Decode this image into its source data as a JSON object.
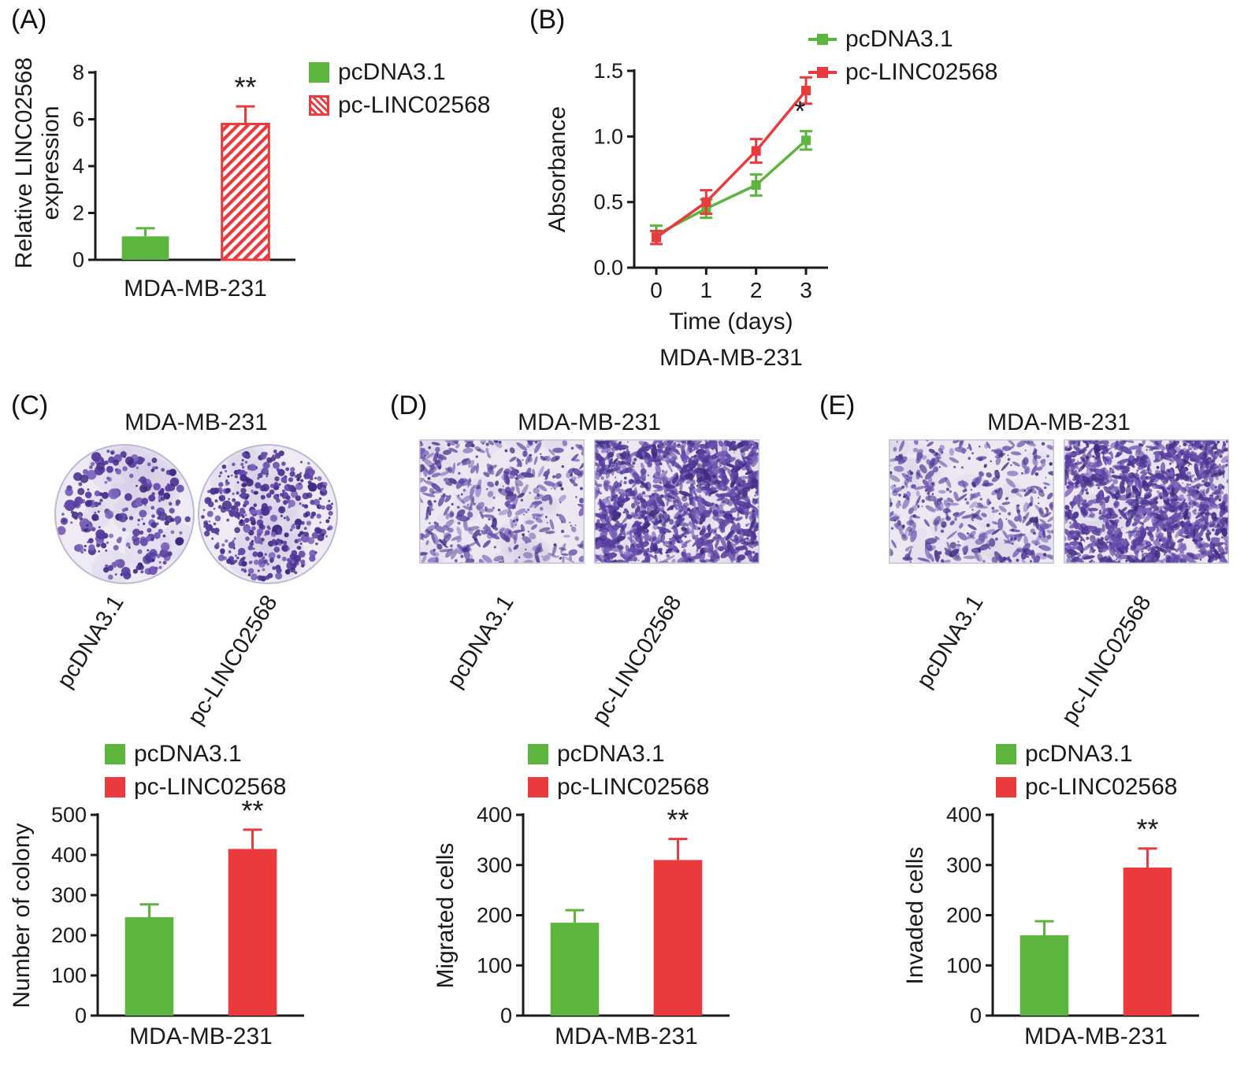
{
  "colors": {
    "green": "#5cb53c",
    "red": "#ea3a3e",
    "axis": "#1a1a1a",
    "stain": "#5a3f9f",
    "stain_bg": "#ebe8f2"
  },
  "panels": {
    "A": {
      "tag": "(A)"
    },
    "B": {
      "tag": "(B)"
    },
    "C": {
      "tag": "(C)",
      "title": "MDA-MB-231",
      "images": [
        {
          "label": "pcDNA3.1",
          "density": "low"
        },
        {
          "label": "pc-LINC02568",
          "density": "high"
        }
      ]
    },
    "D": {
      "tag": "(D)",
      "title": "MDA-MB-231",
      "images": [
        {
          "label": "pcDNA3.1",
          "density": "low"
        },
        {
          "label": "pc-LINC02568",
          "density": "high"
        }
      ]
    },
    "E": {
      "tag": "(E)",
      "title": "MDA-MB-231",
      "images": [
        {
          "label": "pcDNA3.1",
          "density": "low"
        },
        {
          "label": "pc-LINC02568",
          "density": "high"
        }
      ]
    }
  },
  "chart_data": [
    {
      "id": "A",
      "type": "bar",
      "ylabel": "Relative LINC02568 expression",
      "xlabel": "MDA-MB-231",
      "ylim": [
        0,
        8
      ],
      "yticks": [
        "0",
        "2",
        "4",
        "6",
        "8"
      ],
      "categories": [
        "pcDNA3.1",
        "pc-LINC02568"
      ],
      "values": [
        1.0,
        5.8
      ],
      "errors": [
        0.35,
        0.75
      ],
      "bar_styles": [
        "solid-green",
        "hatched-red"
      ],
      "annotations": [
        "",
        "**"
      ],
      "legend": [
        "pcDNA3.1",
        "pc-LINC02568"
      ]
    },
    {
      "id": "B",
      "type": "line",
      "ylabel": "Absorbance",
      "xlabel": "Time (days)",
      "subtitle": "MDA-MB-231",
      "ylim": [
        0,
        1.5
      ],
      "yticks": [
        "0.0",
        "0.5",
        "1.0",
        "1.5"
      ],
      "x": [
        0,
        1,
        2,
        3
      ],
      "xticks": [
        "0",
        "1",
        "2",
        "3"
      ],
      "series": [
        {
          "name": "pcDNA3.1",
          "color": "green",
          "values": [
            0.25,
            0.45,
            0.63,
            0.97
          ],
          "errors": [
            0.07,
            0.07,
            0.08,
            0.07
          ]
        },
        {
          "name": "pc-LINC02568",
          "color": "red",
          "values": [
            0.23,
            0.5,
            0.89,
            1.35
          ],
          "errors": [
            0.05,
            0.09,
            0.09,
            0.1
          ]
        }
      ],
      "annotations": [
        {
          "x": 2.88,
          "y": 1.12,
          "text": "*"
        }
      ],
      "legend_position": "top-right"
    },
    {
      "id": "C",
      "type": "bar",
      "ylabel": "Number of colony",
      "xlabel": "MDA-MB-231",
      "ylim": [
        0,
        500
      ],
      "yticks": [
        "0",
        "100",
        "200",
        "300",
        "400",
        "500"
      ],
      "categories": [
        "pcDNA3.1",
        "pc-LINC02568"
      ],
      "values": [
        245,
        415
      ],
      "errors": [
        32,
        48
      ],
      "bar_styles": [
        "solid-green",
        "solid-red"
      ],
      "annotations": [
        "",
        "**"
      ],
      "legend": [
        "pcDNA3.1",
        "pc-LINC02568"
      ]
    },
    {
      "id": "D",
      "type": "bar",
      "ylabel": "Migrated cells",
      "xlabel": "MDA-MB-231",
      "ylim": [
        0,
        400
      ],
      "yticks": [
        "0",
        "100",
        "200",
        "300",
        "400"
      ],
      "categories": [
        "pcDNA3.1",
        "pc-LINC02568"
      ],
      "values": [
        185,
        310
      ],
      "errors": [
        25,
        42
      ],
      "bar_styles": [
        "solid-green",
        "solid-red"
      ],
      "annotations": [
        "",
        "**"
      ],
      "legend": [
        "pcDNA3.1",
        "pc-LINC02568"
      ]
    },
    {
      "id": "E",
      "type": "bar",
      "ylabel": "Invaded cells",
      "xlabel": "MDA-MB-231",
      "ylim": [
        0,
        400
      ],
      "yticks": [
        "0",
        "100",
        "200",
        "300",
        "400"
      ],
      "categories": [
        "pcDNA3.1",
        "pc-LINC02568"
      ],
      "values": [
        160,
        295
      ],
      "errors": [
        28,
        38
      ],
      "bar_styles": [
        "solid-green",
        "solid-red"
      ],
      "annotations": [
        "",
        "**"
      ],
      "legend": [
        "pcDNA3.1",
        "pc-LINC02568"
      ]
    }
  ]
}
